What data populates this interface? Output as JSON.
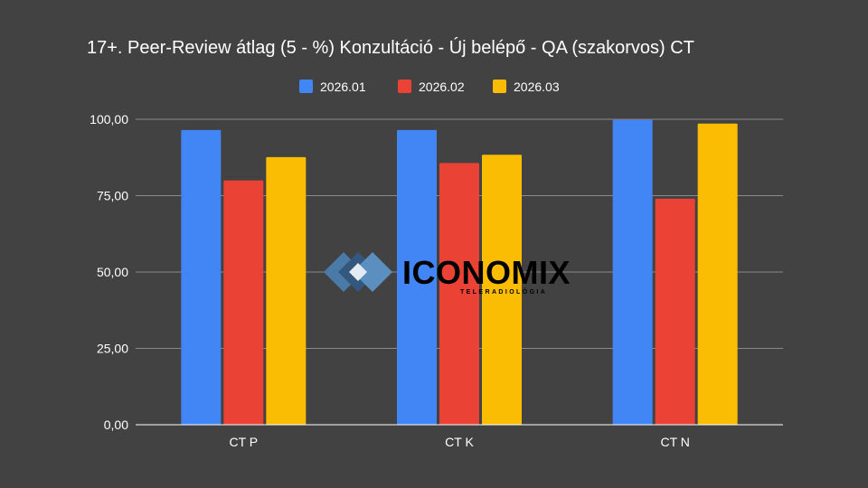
{
  "chart_data": {
    "type": "bar",
    "title": "17+. Peer-Review átlag (5 - %) Konzultáció - Új belépő - QA (szakorvos) CT",
    "categories": [
      "CT P",
      "CT K",
      "CT N"
    ],
    "series": [
      {
        "name": "2026.01",
        "color": "#4285f4",
        "values": [
          96.5,
          96.5,
          99.8
        ]
      },
      {
        "name": "2026.02",
        "color": "#ea4335",
        "values": [
          80.0,
          85.7,
          74.0
        ]
      },
      {
        "name": "2026.03",
        "color": "#fbbc04",
        "values": [
          87.6,
          88.4,
          98.6
        ]
      }
    ],
    "yticks": [
      "0,00",
      "25,00",
      "50,00",
      "75,00",
      "100,00"
    ],
    "ytick_values": [
      0,
      25,
      50,
      75,
      100
    ],
    "ylim": [
      0,
      100
    ],
    "xlabel": "",
    "ylabel": "",
    "legend_position": "top",
    "grid": true
  },
  "watermark": {
    "name": "ICONOMIX",
    "subtitle": "TELERADIOLÓGIA"
  }
}
